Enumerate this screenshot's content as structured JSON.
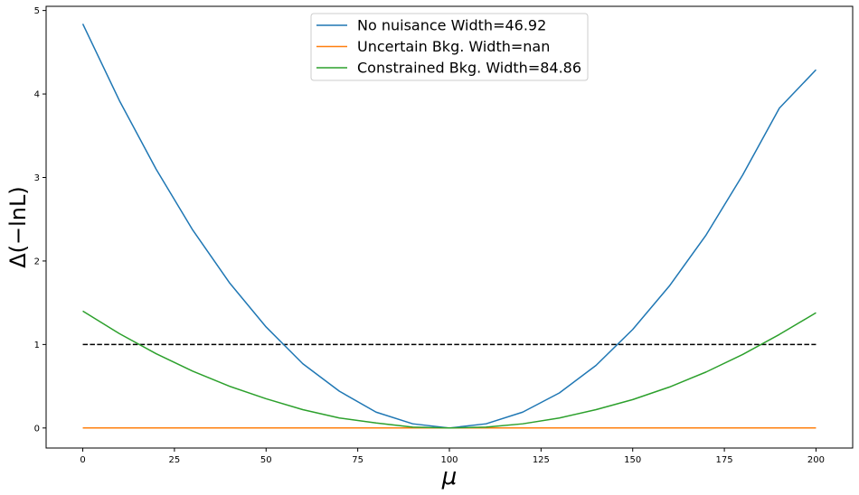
{
  "chart_data": {
    "type": "line",
    "xlabel": "μ",
    "ylabel": "Δ(−lnL)",
    "xlim": [
      -10,
      210
    ],
    "ylim": [
      -0.24,
      5.05
    ],
    "xticks": [
      0,
      25,
      50,
      75,
      100,
      125,
      150,
      175,
      200
    ],
    "yticks": [
      0,
      1,
      2,
      3,
      4,
      5
    ],
    "grid": false,
    "legend_position": "top-center",
    "series": [
      {
        "name": "No nuisance Width=46.92",
        "color": "#1f77b4",
        "x": [
          0,
          10,
          20,
          30,
          40,
          50,
          60,
          70,
          80,
          90,
          100,
          110,
          120,
          130,
          140,
          150,
          160,
          170,
          180,
          190,
          200
        ],
        "y": [
          4.84,
          3.92,
          3.1,
          2.37,
          1.74,
          1.21,
          0.77,
          0.44,
          0.19,
          0.05,
          0.0,
          0.05,
          0.19,
          0.42,
          0.75,
          1.18,
          1.7,
          2.31,
          3.03,
          3.83,
          4.29
        ]
      },
      {
        "name": "Uncertain Bkg. Width=nan",
        "color": "#ff7f0e",
        "x": [
          0,
          200
        ],
        "y": [
          0.0,
          0.0
        ]
      },
      {
        "name": "Constrained Bkg. Width=84.86",
        "color": "#2ca02c",
        "x": [
          0,
          10,
          20,
          30,
          40,
          50,
          60,
          70,
          80,
          90,
          100,
          110,
          120,
          130,
          140,
          150,
          160,
          170,
          180,
          190,
          200
        ],
        "y": [
          1.4,
          1.13,
          0.89,
          0.68,
          0.5,
          0.35,
          0.22,
          0.12,
          0.06,
          0.01,
          0.0,
          0.01,
          0.05,
          0.12,
          0.22,
          0.34,
          0.49,
          0.67,
          0.88,
          1.12,
          1.38
        ]
      }
    ],
    "reference_line": {
      "y": 1.0,
      "x_range": [
        0,
        200
      ],
      "style": "dashed",
      "color": "#000000"
    }
  }
}
